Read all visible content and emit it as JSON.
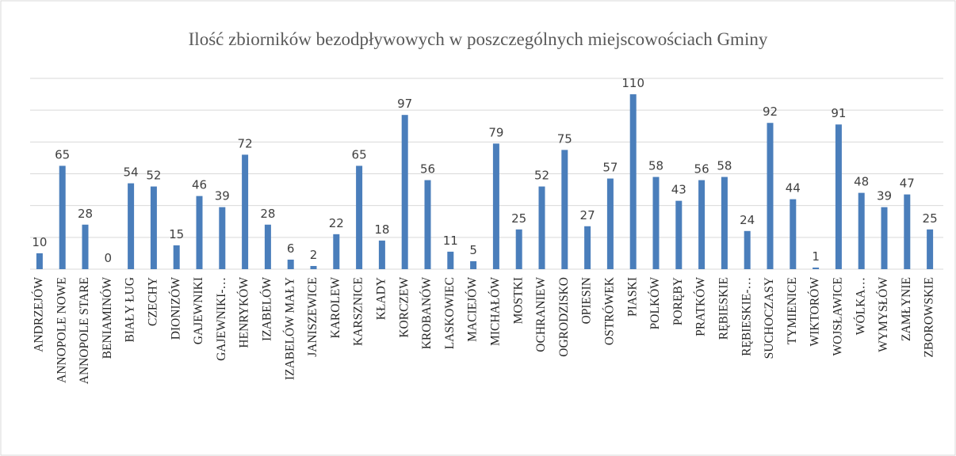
{
  "chart_data": {
    "type": "bar",
    "title": "Ilość zbiorników bezodpływowych w poszczególnych miejscowościach Gminy",
    "categories": [
      "ANDRZEJÓW",
      "ANNOPOLE NOWE",
      "ANNOPOLE STARE",
      "BENIAMINÓW",
      "BIAŁY ŁUG",
      "CZECHY",
      "DIONIZÓW",
      "GAJEWNIKI",
      "GAJEWNIKI-…",
      "HENRYKÓW",
      "IZABELÓW",
      "IZABELÓW MAŁY",
      "JANISZEWICE",
      "KAROLEW",
      "KARSZNICE",
      "KŁADY",
      "KORCZEW",
      "KROBANÓW",
      "LASKOWIEC",
      "MACIEJÓW",
      "MICHAŁÓW",
      "MOSTKI",
      "OCHRANIEW",
      "OGRODZISKO",
      "OPIESIN",
      "OSTRÓWEK",
      "PIASKI",
      "POLKÓW",
      "PORĘBY",
      "PRATKÓW",
      "RĘBIESKIE",
      "RĘBIESKIE-…",
      "SUCHOCZASY",
      "TYMIENICE",
      "WIKTORÓW",
      "WOJSŁAWICE",
      "WÓLKA…",
      "WYMYSŁÓW",
      "ZAMŁYNIE",
      "ZBOROWSKIE"
    ],
    "values": [
      10,
      65,
      28,
      0,
      54,
      52,
      15,
      46,
      39,
      72,
      28,
      6,
      2,
      22,
      65,
      18,
      97,
      56,
      11,
      5,
      79,
      25,
      52,
      75,
      27,
      57,
      110,
      58,
      43,
      56,
      58,
      24,
      92,
      44,
      1,
      91,
      48,
      39,
      47,
      25
    ],
    "color": "#4a7ebb",
    "ylim": [
      0,
      120
    ],
    "yticks": [
      0,
      20,
      40,
      60,
      80,
      100,
      120
    ],
    "grid": true
  }
}
